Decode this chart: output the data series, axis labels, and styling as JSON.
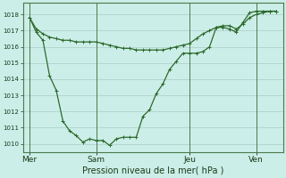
{
  "background_color": "#cceee8",
  "grid_color": "#aaccc6",
  "line_color": "#2d6a2d",
  "xlabel": "Pression niveau de la mer( hPa )",
  "ylim": [
    1009.5,
    1018.7
  ],
  "yticks": [
    1010,
    1011,
    1012,
    1013,
    1014,
    1015,
    1016,
    1017,
    1018
  ],
  "xtick_labels": [
    "Mer",
    "Sam",
    "Jeu",
    "Ven"
  ],
  "xtick_positions": [
    0,
    10,
    24,
    34
  ],
  "vline_positions": [
    0,
    10,
    24,
    34
  ],
  "xlim": [
    -1,
    38
  ],
  "series1_x": [
    0,
    1,
    2,
    3,
    4,
    5,
    6,
    7,
    8,
    9,
    10,
    11,
    12,
    13,
    14,
    15,
    16,
    17,
    18,
    19,
    20,
    21,
    22,
    23,
    24,
    25,
    26,
    27,
    28,
    29,
    30,
    31,
    32,
    33,
    34,
    35,
    36,
    37
  ],
  "series1_y": [
    1017.8,
    1017.1,
    1016.8,
    1016.6,
    1016.5,
    1016.4,
    1016.4,
    1016.3,
    1016.3,
    1016.3,
    1016.3,
    1016.2,
    1016.1,
    1016.0,
    1015.9,
    1015.9,
    1015.8,
    1015.8,
    1015.8,
    1015.8,
    1015.8,
    1015.9,
    1016.0,
    1016.1,
    1016.2,
    1016.5,
    1016.8,
    1017.0,
    1017.2,
    1017.3,
    1017.3,
    1017.1,
    1017.4,
    1017.8,
    1018.0,
    1018.1,
    1018.2,
    1018.2
  ],
  "series2_x": [
    0,
    1,
    2,
    3,
    4,
    5,
    6,
    7,
    8,
    9,
    10,
    11,
    12,
    13,
    14,
    15,
    16,
    17,
    18,
    19,
    20,
    21,
    22,
    23,
    24,
    25,
    26,
    27,
    28,
    29,
    30,
    31,
    32,
    33,
    34,
    35,
    36,
    37
  ],
  "series2_y": [
    1017.8,
    1016.9,
    1016.4,
    1014.2,
    1013.3,
    1011.4,
    1010.8,
    1010.5,
    1010.1,
    1010.3,
    1010.2,
    1010.2,
    1009.9,
    1010.3,
    1010.4,
    1010.4,
    1010.4,
    1011.7,
    1012.1,
    1013.1,
    1013.7,
    1014.6,
    1015.1,
    1015.6,
    1015.6,
    1015.6,
    1015.7,
    1016.0,
    1017.2,
    1017.2,
    1017.1,
    1016.9,
    1017.5,
    1018.1,
    1018.2,
    1018.2,
    1018.2,
    1018.2
  ]
}
